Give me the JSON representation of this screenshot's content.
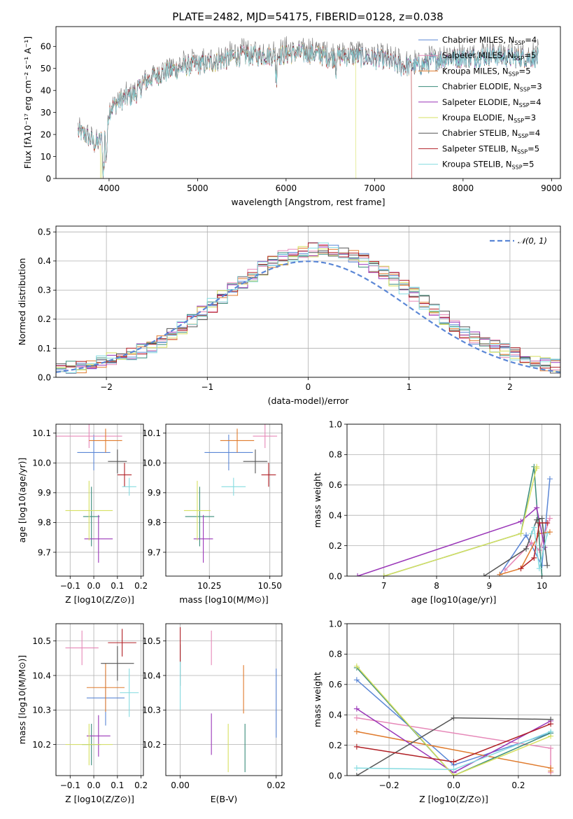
{
  "title": "PLATE=2482, MJD=54175, FIBERID=0128, z=0.038",
  "colors": [
    "#5b87d6",
    "#e688b8",
    "#e07b2d",
    "#3a8c7a",
    "#9a36b8",
    "#d6e060",
    "#555555",
    "#b01f25",
    "#85dbe0"
  ],
  "chart_data": [
    {
      "id": "spectrum",
      "type": "line",
      "xlabel": "wavelength [Angstrom, rest frame]",
      "ylabel": "Flux [fλ10⁻¹⁷ erg cm⁻² s⁻¹ A⁻¹]",
      "xlim": [
        3400,
        9100
      ],
      "ylim": [
        0,
        69
      ],
      "xticks": [
        4000,
        5000,
        6000,
        7000,
        8000,
        9000
      ],
      "yticks": [
        0,
        10,
        20,
        30,
        40,
        50,
        60
      ],
      "grid": false,
      "legend_position": "upper-right",
      "continuum": {
        "x": [
          3650,
          3750,
          3850,
          3950,
          4000,
          4100,
          4200,
          4300,
          4400,
          4500,
          4700,
          4900,
          5100,
          5300,
          5500,
          5700,
          5900,
          6100,
          6300,
          6500,
          6700,
          6900,
          7100,
          7300,
          7500,
          7700,
          7900,
          8100,
          8300,
          8500,
          8700,
          8850
        ],
        "y": [
          22,
          20,
          16,
          20,
          32,
          36,
          38,
          40,
          45,
          48,
          51,
          53,
          54,
          56,
          58,
          58,
          58,
          59,
          59,
          57,
          58,
          57,
          56,
          53,
          53,
          56,
          57,
          57,
          58,
          57,
          57,
          57
        ]
      },
      "dropouts": {
        "Salpeter STELIB": 7420,
        "Kroupa ELODIE": 6790
      },
      "legend": [
        {
          "name": "Chabrier MILES",
          "nssp": "4"
        },
        {
          "name": "Salpeter MILES",
          "nssp": "5"
        },
        {
          "name": "Kroupa MILES",
          "nssp": "5"
        },
        {
          "name": "Chabrier ELODIE",
          "nssp": "3"
        },
        {
          "name": "Salpeter ELODIE",
          "nssp": "4"
        },
        {
          "name": "Kroupa ELODIE",
          "nssp": "3"
        },
        {
          "name": "Chabrier STELIB",
          "nssp": "4"
        },
        {
          "name": "Salpeter STELIB",
          "nssp": "5"
        },
        {
          "name": "Kroupa STELIB",
          "nssp": "5"
        }
      ]
    },
    {
      "id": "residuals",
      "type": "line",
      "xlabel": "(data-model)/error",
      "ylabel": "Normed distribution",
      "xlim": [
        -2.5,
        2.5
      ],
      "ylim": [
        0,
        0.52
      ],
      "xticks": [
        -2,
        -1,
        0,
        1,
        2
      ],
      "xticklabels": [
        "−2",
        "−1",
        "0",
        "1",
        "2"
      ],
      "yticks": [
        0,
        0.1,
        0.2,
        0.3,
        0.4,
        0.5
      ],
      "yticklabels": [
        "0.0",
        "0.1",
        "0.2",
        "0.3",
        "0.4",
        "0.5"
      ],
      "grid": true,
      "normal_curve": {
        "label": "𝒩(0, 1)",
        "mean": 0,
        "sigma": 1
      },
      "bin_width": 0.1
    },
    {
      "id": "age-vs-Z",
      "type": "scatter",
      "xlabel": "Z [log10(Z/Z⊙)]",
      "ylabel": "age [log10(age/yr)]",
      "xlim": [
        -0.16,
        0.21
      ],
      "ylim": [
        9.62,
        10.13
      ],
      "xticks": [
        -0.1,
        0.0,
        0.1,
        0.2
      ],
      "xticklabels": [
        "−0.1",
        "0.0",
        "0.1",
        "0.2"
      ],
      "yticks": [
        9.7,
        9.8,
        9.9,
        10.0,
        10.1
      ],
      "yticklabels": [
        "9.7",
        "9.8",
        "9.9",
        "10.0",
        "10.1"
      ],
      "grid": true,
      "points": [
        {
          "x": 0.0,
          "xerr": 0.07,
          "y": 10.035,
          "yerr": 0.06
        },
        {
          "x": -0.02,
          "xerr": 0.14,
          "y": 10.09,
          "yerr": 0.04
        },
        {
          "x": 0.05,
          "xerr": 0.07,
          "y": 10.075,
          "yerr": 0.04
        },
        {
          "x": -0.01,
          "xerr": 0.035,
          "y": 9.82,
          "yerr": 0.1
        },
        {
          "x": 0.02,
          "xerr": 0.06,
          "y": 9.745,
          "yerr": 0.08
        },
        {
          "x": -0.02,
          "xerr": 0.1,
          "y": 9.84,
          "yerr": 0.1
        },
        {
          "x": 0.1,
          "xerr": 0.04,
          "y": 10.005,
          "yerr": 0.04
        },
        {
          "x": 0.13,
          "xerr": 0.03,
          "y": 9.96,
          "yerr": 0.04
        },
        {
          "x": 0.15,
          "xerr": 0.03,
          "y": 9.92,
          "yerr": 0.03
        }
      ]
    },
    {
      "id": "age-vs-mass",
      "type": "scatter",
      "xlabel": "mass [log10(M/M⊙)]",
      "ylabel": "",
      "xlim": [
        10.07,
        10.55
      ],
      "ylim": [
        9.62,
        10.13
      ],
      "xticks": [
        10.25,
        10.5
      ],
      "xticklabels": [
        "10.25",
        "10.50"
      ],
      "yticks": [
        9.7,
        9.8,
        9.9,
        10.0,
        10.1
      ],
      "yticklabels": [
        "9.7",
        "9.8",
        "9.9",
        "10.0",
        "10.1"
      ],
      "grid": true,
      "points": [
        {
          "x": 10.33,
          "xerr": 0.1,
          "y": 10.035,
          "yerr": 0.06
        },
        {
          "x": 10.48,
          "xerr": 0.05,
          "y": 10.09,
          "yerr": 0.04
        },
        {
          "x": 10.365,
          "xerr": 0.07,
          "y": 10.075,
          "yerr": 0.04
        },
        {
          "x": 10.21,
          "xerr": 0.06,
          "y": 9.82,
          "yerr": 0.1
        },
        {
          "x": 10.225,
          "xerr": 0.04,
          "y": 9.745,
          "yerr": 0.08
        },
        {
          "x": 10.2,
          "xerr": 0.055,
          "y": 9.84,
          "yerr": 0.1
        },
        {
          "x": 10.44,
          "xerr": 0.05,
          "y": 10.005,
          "yerr": 0.04
        },
        {
          "x": 10.495,
          "xerr": 0.03,
          "y": 9.96,
          "yerr": 0.04
        },
        {
          "x": 10.35,
          "xerr": 0.05,
          "y": 9.92,
          "yerr": 0.03
        }
      ]
    },
    {
      "id": "weight-vs-age",
      "type": "line",
      "xlabel": "age  [log10(age/yr)]",
      "ylabel": "mass weight",
      "xlim": [
        6.3,
        10.35
      ],
      "ylim": [
        0,
        1.0
      ],
      "xticks": [
        7,
        8,
        9,
        10
      ],
      "xticklabels": [
        "7",
        "8",
        "9",
        "10"
      ],
      "yticks": [
        0,
        0.2,
        0.4,
        0.6,
        0.8,
        1.0
      ],
      "yticklabels": [
        "0.0",
        "0.2",
        "0.4",
        "0.6",
        "0.8",
        "1.0"
      ],
      "grid": true,
      "series": [
        {
          "x": [
            9.2,
            9.7,
            10.0,
            10.15
          ],
          "y": [
            0.01,
            0.27,
            0.07,
            0.64
          ]
        },
        {
          "x": [
            9.3,
            9.8,
            9.95,
            10.15
          ],
          "y": [
            0.04,
            0.22,
            0.17,
            0.38
          ]
        },
        {
          "x": [
            9.2,
            9.6,
            9.95,
            10.15
          ],
          "y": [
            0.01,
            0.05,
            0.28,
            0.29
          ]
        },
        {
          "x": [
            7.0,
            9.6,
            9.85,
            10.0
          ],
          "y": [
            0.0,
            0.28,
            0.72,
            0.0
          ]
        },
        {
          "x": [
            6.5,
            9.6,
            9.9,
            10.05
          ],
          "y": [
            0.0,
            0.36,
            0.45,
            0.19
          ]
        },
        {
          "x": [
            7.0,
            9.6,
            9.9,
            9.9
          ],
          "y": [
            0.0,
            0.28,
            0.72,
            0.71
          ]
        },
        {
          "x": [
            8.9,
            9.7,
            9.9,
            10.0,
            10.1
          ],
          "y": [
            0.0,
            0.18,
            0.37,
            0.38,
            0.07
          ]
        },
        {
          "x": [
            9.6,
            9.85,
            9.95,
            10.1
          ],
          "y": [
            0.05,
            0.12,
            0.35,
            0.35
          ]
        },
        {
          "x": [
            9.8,
            9.85,
            9.95,
            10.1
          ],
          "y": [
            0.28,
            0.32,
            0.05,
            0.28
          ]
        }
      ]
    },
    {
      "id": "mass-vs-Z",
      "type": "scatter",
      "xlabel": "Z [log10(Z/Z⊙)]",
      "ylabel": "mass [log10(M/M⊙)]",
      "xlim": [
        -0.16,
        0.21
      ],
      "ylim": [
        10.11,
        10.55
      ],
      "xticks": [
        -0.1,
        0.0,
        0.1,
        0.2
      ],
      "xticklabels": [
        "−0.1",
        "0.0",
        "0.1",
        "0.2"
      ],
      "yticks": [
        10.2,
        10.3,
        10.4,
        10.5
      ],
      "yticklabels": [
        "10.2",
        "10.3",
        "10.4",
        "10.5"
      ],
      "grid": true,
      "points": [
        {
          "x": 0.05,
          "xerr": 0.08,
          "y": 10.335,
          "yerr": 0.08
        },
        {
          "x": -0.05,
          "xerr": 0.07,
          "y": 10.48,
          "yerr": 0.05
        },
        {
          "x": 0.05,
          "xerr": 0.08,
          "y": 10.365,
          "yerr": 0.07
        },
        {
          "x": -0.01,
          "xerr": 0.04,
          "y": 10.2,
          "yerr": 0.06
        },
        {
          "x": 0.02,
          "xerr": 0.05,
          "y": 10.225,
          "yerr": 0.06
        },
        {
          "x": -0.02,
          "xerr": 0.1,
          "y": 10.2,
          "yerr": 0.06
        },
        {
          "x": 0.1,
          "xerr": 0.07,
          "y": 10.435,
          "yerr": 0.05
        },
        {
          "x": 0.12,
          "xerr": 0.06,
          "y": 10.495,
          "yerr": 0.04
        },
        {
          "x": 0.15,
          "xerr": 0.04,
          "y": 10.35,
          "yerr": 0.07
        }
      ]
    },
    {
      "id": "mass-vs-EBV",
      "type": "scatter",
      "xlabel": "E(B-V)",
      "ylabel": "",
      "xlim": [
        -0.003,
        0.0212
      ],
      "ylim": [
        10.11,
        10.55
      ],
      "xticks": [
        0.0,
        0.02
      ],
      "xticklabels": [
        "0.00",
        "0.02"
      ],
      "yticks": [
        10.2,
        10.3,
        10.4,
        10.5
      ],
      "yticklabels": [
        "10.2",
        "10.3",
        "10.4",
        "10.5"
      ],
      "grid": true,
      "points": [
        {
          "x": 0.02,
          "xerr": 0,
          "y": 10.32,
          "yerr": 0.1
        },
        {
          "x": 0.0065,
          "xerr": 0,
          "y": 10.48,
          "yerr": 0.05
        },
        {
          "x": 0.0132,
          "xerr": 0,
          "y": 10.36,
          "yerr": 0.07
        },
        {
          "x": 0.0135,
          "xerr": 0,
          "y": 10.19,
          "yerr": 0.07
        },
        {
          "x": 0.0065,
          "xerr": 0,
          "y": 10.23,
          "yerr": 0.06
        },
        {
          "x": 0.01,
          "xerr": 0,
          "y": 10.19,
          "yerr": 0.07
        },
        {
          "x": 0.0,
          "xerr": 0,
          "y": 10.43,
          "yerr": 0.06
        },
        {
          "x": 0.0,
          "xerr": 0,
          "y": 10.49,
          "yerr": 0.05
        },
        {
          "x": 0.0,
          "xerr": 0,
          "y": 10.37,
          "yerr": 0.07
        }
      ]
    },
    {
      "id": "weight-vs-Z",
      "type": "line",
      "xlabel": "Z [log10(Z/Z⊙)]",
      "ylabel": "mass weight",
      "xlim": [
        -0.33,
        0.33
      ],
      "ylim": [
        0,
        1.0
      ],
      "xticks": [
        -0.2,
        0.0,
        0.2
      ],
      "xticklabels": [
        "−0.2",
        "0.0",
        "0.2"
      ],
      "yticks": [
        0,
        0.2,
        0.4,
        0.6,
        0.8,
        1.0
      ],
      "yticklabels": [
        "0.0",
        "0.2",
        "0.4",
        "0.6",
        "0.8",
        "1.0"
      ],
      "grid": true,
      "series": [
        {
          "x": [
            -0.3,
            0.0,
            0.3
          ],
          "y": [
            0.63,
            0.07,
            0.28
          ]
        },
        {
          "x": [
            -0.3,
            0.3,
            0.3
          ],
          "y": [
            0.38,
            0.18,
            0.02
          ]
        },
        {
          "x": [
            -0.3,
            0.3,
            0.3
          ],
          "y": [
            0.29,
            0.05,
            0.03
          ]
        },
        {
          "x": [
            -0.3,
            0.0,
            0.3
          ],
          "y": [
            0.71,
            0.0,
            0.28
          ]
        },
        {
          "x": [
            -0.3,
            0.0,
            0.3
          ],
          "y": [
            0.44,
            0.02,
            0.36
          ]
        },
        {
          "x": [
            -0.3,
            0.0,
            0.3
          ],
          "y": [
            0.72,
            0.0,
            0.26
          ]
        },
        {
          "x": [
            -0.3,
            0.0,
            0.3
          ],
          "y": [
            0.0,
            0.38,
            0.37
          ]
        },
        {
          "x": [
            -0.3,
            0.0,
            0.3
          ],
          "y": [
            0.19,
            0.09,
            0.34
          ]
        },
        {
          "x": [
            -0.3,
            0.0,
            0.3
          ],
          "y": [
            0.05,
            0.04,
            0.29
          ]
        }
      ]
    }
  ]
}
